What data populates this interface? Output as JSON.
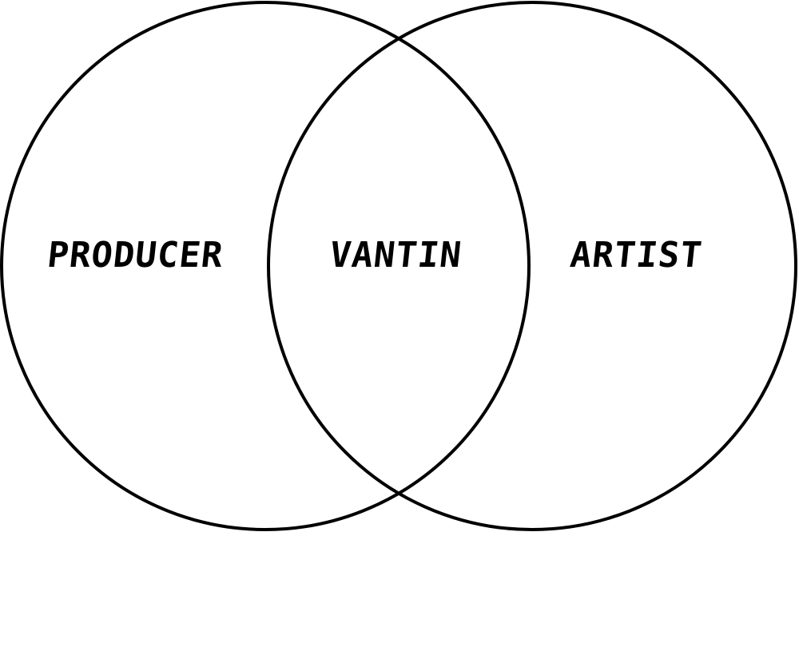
{
  "diagram": {
    "type": "venn",
    "sets": [
      {
        "label": "PRODUCER"
      },
      {
        "label": "ARTIST"
      }
    ],
    "intersection": {
      "label": "VANTIN"
    },
    "colors": {
      "background": "#ffffff",
      "stroke": "#000000",
      "text": "#000000"
    }
  }
}
